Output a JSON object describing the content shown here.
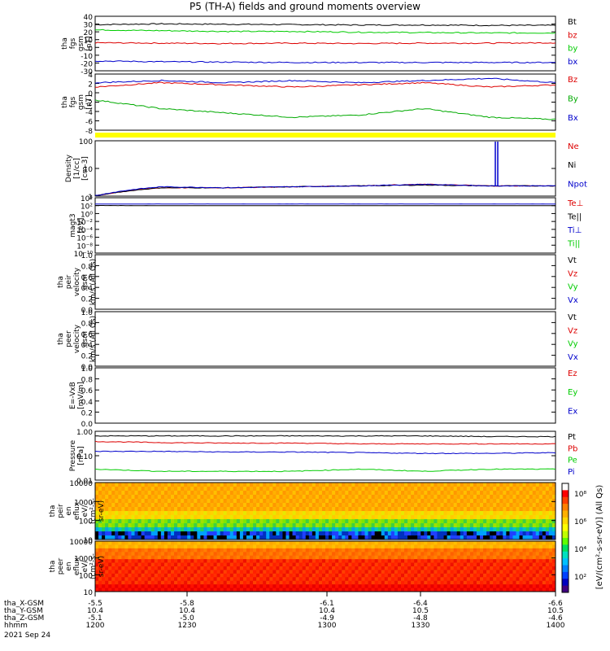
{
  "title": "P5 (TH-A) fields and ground moments overview",
  "panels": [
    {
      "id": "fgs",
      "ylabel": [
        "tha",
        "fgs",
        "gsm",
        "[nT]"
      ],
      "ticks": [
        "40",
        "30",
        "20",
        "10",
        "0",
        "-10",
        "-20",
        "-30"
      ],
      "legend": [
        {
          "t": "Bt",
          "c": "#000000"
        },
        {
          "t": "bz",
          "c": "#dd0000"
        },
        {
          "t": "by",
          "c": "#00cc00"
        },
        {
          "t": "bx",
          "c": "#0000cc"
        }
      ],
      "series": [
        {
          "name": "Bt",
          "values": [
            29,
            30,
            29.5,
            29,
            28.5,
            28.5,
            28,
            28
          ],
          "color": "#000000"
        },
        {
          "name": "bz",
          "values": [
            5,
            4.5,
            4,
            4.5,
            4,
            4.5,
            4.5,
            5
          ],
          "color": "#dd0000"
        },
        {
          "name": "by",
          "values": [
            22,
            21,
            20,
            20,
            19,
            18.5,
            18,
            18
          ],
          "color": "#00cc00"
        },
        {
          "name": "bx",
          "values": [
            -19,
            -20,
            -20.5,
            -21,
            -21,
            -21,
            -21,
            -21
          ],
          "color": "#0000cc"
        }
      ],
      "ylim": [
        -32,
        40
      ]
    },
    {
      "id": "fgs-dc",
      "ylabel": [
        "tha",
        "fgs",
        "gsm",
        "[nT]"
      ],
      "ticks": [
        "4",
        "2",
        "0",
        "-2",
        "-4",
        "-6",
        "-8"
      ],
      "legend": [
        {
          "t": "Bz",
          "c": "#dd0000"
        },
        {
          "t": "By",
          "c": "#00aa00"
        },
        {
          "t": "Bx",
          "c": "#0000cc"
        }
      ],
      "series": [
        {
          "name": "Bz",
          "values": [
            1,
            2,
            1.5,
            1,
            1.5,
            2,
            1,
            1.5
          ],
          "color": "#dd0000"
        },
        {
          "name": "By",
          "values": [
            -2,
            -4,
            -5,
            -6,
            -5.5,
            -4,
            -6,
            -6.5
          ],
          "color": "#00aa00"
        },
        {
          "name": "Bx",
          "values": [
            2,
            2.5,
            2,
            2.5,
            2,
            2.5,
            3,
            2
          ],
          "color": "#0000cc"
        }
      ],
      "ylim": [
        -9,
        4
      ]
    },
    {
      "id": "density",
      "ylabel": [
        "Density",
        "[1/cc]",
        "[cm-3]"
      ],
      "ticks": [
        "100",
        "10",
        "1"
      ],
      "legend": [
        {
          "t": "Ne",
          "c": "#dd0000"
        },
        {
          "t": "Ni",
          "c": "#000000"
        },
        {
          "t": "Npot",
          "c": "#0000cc"
        }
      ],
      "series": [
        {
          "name": "Ne",
          "values": [
            0.3,
            0.8,
            0.8,
            0.9,
            1.0,
            1.2,
            1.0,
            1.0
          ],
          "color": "#dd0000"
        },
        {
          "name": "Ni",
          "values": [
            0.3,
            0.8,
            0.8,
            0.9,
            1.0,
            1.1,
            1.0,
            1.0
          ],
          "color": "#000000"
        },
        {
          "name": "Npot",
          "values": [
            0.3,
            0.9,
            0.8,
            0.9,
            1.0,
            1.2,
            1.0,
            1.0
          ],
          "color": "#0000cc"
        }
      ],
      "log": true,
      "ylim": [
        0.3,
        200
      ]
    },
    {
      "id": "temp",
      "ylabel": [
        "magt3",
        "[eV]"
      ],
      "ticks": [
        "10⁴",
        "10²",
        "10⁰",
        "10⁻²",
        "10⁻⁴",
        "10⁻⁶",
        "10⁻⁸",
        "10⁻¹⁰"
      ],
      "legend": [
        {
          "t": "Te⊥",
          "c": "#dd0000"
        },
        {
          "t": "Te||",
          "c": "#000000"
        },
        {
          "t": "Ti⊥",
          "c": "#0000cc"
        },
        {
          "t": "Ti||",
          "c": "#00cc00"
        }
      ],
      "series": [
        {
          "name": "Te",
          "values": [
            2000,
            2000,
            2000,
            2000,
            2000,
            2000,
            2000,
            2000
          ],
          "color": "#0000cc"
        },
        {
          "name": "Ti",
          "values": [
            800,
            700,
            700,
            700,
            700,
            700,
            700,
            700
          ],
          "color": "#000000"
        }
      ],
      "ylabel2": "",
      "log": true,
      "ylim": [
        1e-10,
        100000.0
      ]
    },
    {
      "id": "peir-v",
      "ylabel": [
        "tha",
        "peir",
        "velocity",
        "gsm",
        "km/s (All Qs)"
      ],
      "ticks": [
        "1.0",
        "0.8",
        "0.6",
        "0.4",
        "0.2",
        "0.0"
      ],
      "legend": [
        {
          "t": "Vt",
          "c": "#000000"
        },
        {
          "t": "Vz",
          "c": "#dd0000"
        },
        {
          "t": "Vy",
          "c": "#00cc00"
        },
        {
          "t": "Vx",
          "c": "#0000cc"
        }
      ],
      "series": [],
      "ylim": [
        0,
        1
      ]
    },
    {
      "id": "peer-v",
      "ylabel": [
        "tha",
        "peer",
        "velocity",
        "gsm",
        "km/s (All Qs)"
      ],
      "ticks": [
        "1.0",
        "0.8",
        "0.6",
        "0.4",
        "0.2",
        "0.0"
      ],
      "legend": [
        {
          "t": "Vt",
          "c": "#000000"
        },
        {
          "t": "Vz",
          "c": "#dd0000"
        },
        {
          "t": "Vy",
          "c": "#00cc00"
        },
        {
          "t": "Vx",
          "c": "#0000cc"
        }
      ],
      "series": [],
      "ylim": [
        0,
        1
      ]
    },
    {
      "id": "efield",
      "ylabel": [
        "E=-VxB",
        "[mV/m]"
      ],
      "ticks": [
        "1.0",
        "0.8",
        "0.6",
        "0.4",
        "0.2",
        "0.0"
      ],
      "legend": [
        {
          "t": "Ez",
          "c": "#dd0000"
        },
        {
          "t": "Ey",
          "c": "#00cc00"
        },
        {
          "t": "Ex",
          "c": "#0000cc"
        }
      ],
      "series": [],
      "ylim": [
        0,
        1
      ]
    },
    {
      "id": "pressure",
      "ylabel": [
        "Pressure",
        "[nPa]"
      ],
      "ticks": [
        "1.00",
        "0.10",
        "0.01"
      ],
      "legend": [
        {
          "t": "Pt",
          "c": "#000000"
        },
        {
          "t": "Pb",
          "c": "#dd0000"
        },
        {
          "t": "Pe",
          "c": "#00cc00"
        },
        {
          "t": "Pi",
          "c": "#0000cc"
        }
      ],
      "series": [
        {
          "name": "Pt",
          "values": [
            0.8,
            0.8,
            0.8,
            0.8,
            0.8,
            0.8,
            0.75,
            0.75
          ],
          "color": "#000000"
        },
        {
          "name": "Pb",
          "values": [
            0.45,
            0.4,
            0.38,
            0.38,
            0.35,
            0.35,
            0.35,
            0.35
          ],
          "color": "#dd0000"
        },
        {
          "name": "Pi",
          "values": [
            0.16,
            0.16,
            0.15,
            0.15,
            0.14,
            0.13,
            0.13,
            0.14
          ],
          "color": "#0000cc"
        },
        {
          "name": "Pe",
          "values": [
            0.025,
            0.02,
            0.02,
            0.02,
            0.025,
            0.02,
            0.025,
            0.025
          ],
          "color": "#00cc00"
        }
      ],
      "log": true,
      "ylim": [
        0.008,
        1.3
      ]
    },
    {
      "id": "peir-eflux",
      "ylabel": [
        "tha",
        "peir",
        "en",
        "eflux",
        "eV/",
        "(cm²-s-",
        "sr-eV)"
      ],
      "ticks": [
        "10000",
        "1000",
        "100",
        "10"
      ],
      "spec": "ion"
    },
    {
      "id": "peer-eflux",
      "ylabel": [
        "tha",
        "peer",
        "en",
        "eflux",
        "eV/",
        "(cm²-s-",
        "sr-eV)"
      ],
      "ticks": [
        "10000",
        "1000",
        "100",
        "10"
      ],
      "spec": "ele"
    }
  ],
  "colorbar": {
    "ticks": [
      "10⁸",
      "10⁶",
      "10⁴",
      "10²"
    ],
    "label": "[eV/(cm²-s-sr-eV)] (All Qs)"
  },
  "footer": {
    "rows": [
      {
        "label": "tha_X-GSM",
        "values": [
          "-5.5",
          "-5.8",
          "-6.1",
          "-6.4",
          "-6.6"
        ]
      },
      {
        "label": "tha_Y-GSM",
        "values": [
          "10.4",
          "10.4",
          "10.4",
          "10.5",
          "10.5"
        ]
      },
      {
        "label": "tha_Z-GSM",
        "values": [
          "-5.1",
          "-5.0",
          "-4.9",
          "-4.8",
          "-4.6"
        ]
      },
      {
        "label": "hhmm",
        "values": [
          "1200",
          "1230",
          "1300",
          "1330",
          "1400"
        ]
      }
    ],
    "date": "2021 Sep 24"
  }
}
